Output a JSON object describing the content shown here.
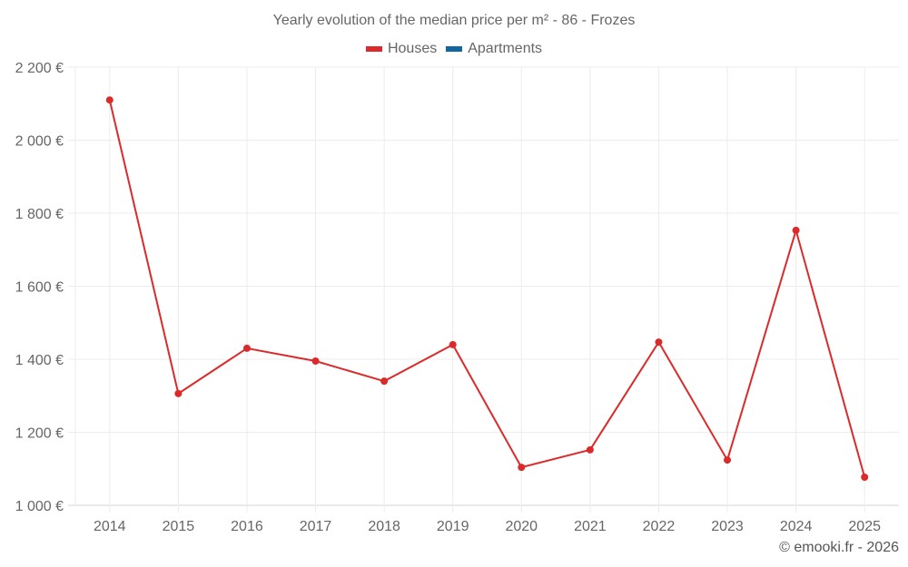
{
  "title": "Yearly evolution of the median price per m² - 86 - Frozes",
  "legend": [
    {
      "label": "Houses",
      "color": "#dc2a2a"
    },
    {
      "label": "Apartments",
      "color": "#11669e"
    }
  ],
  "footer": "© emooki.fr - 2026",
  "chart_data": {
    "type": "line",
    "title": "Yearly evolution of the median price per m² - 86 - Frozes",
    "xlabel": "",
    "ylabel": "",
    "categories": [
      "2014",
      "2015",
      "2016",
      "2017",
      "2018",
      "2019",
      "2020",
      "2021",
      "2022",
      "2023",
      "2024",
      "2025"
    ],
    "series": [
      {
        "name": "Houses",
        "color": "#dc2a2a",
        "values": [
          2110,
          1306,
          1430,
          1395,
          1340,
          1440,
          1104,
          1152,
          1447,
          1124,
          1753,
          1077
        ]
      },
      {
        "name": "Apartments",
        "color": "#11669e",
        "values": []
      }
    ],
    "ylim": [
      1000,
      2200
    ],
    "yticks": [
      1000,
      1200,
      1400,
      1600,
      1800,
      2000,
      2200
    ],
    "ytick_labels": [
      "1 000 €",
      "1 200 €",
      "1 400 €",
      "1 600 €",
      "1 800 €",
      "2 000 €",
      "2 200 €"
    ],
    "grid": true,
    "legend_position": "top"
  }
}
